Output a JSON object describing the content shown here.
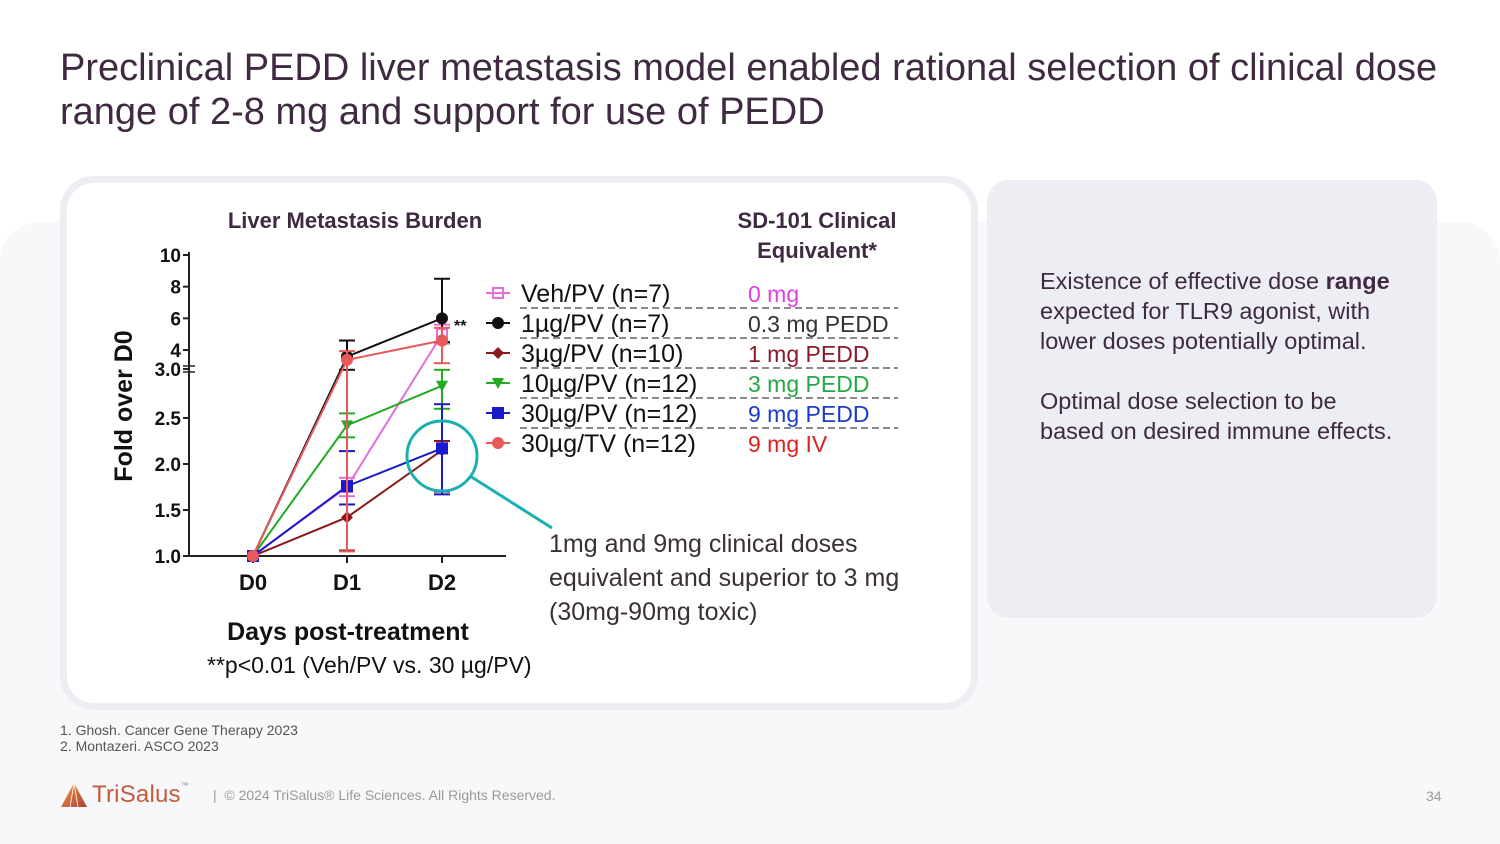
{
  "slide": {
    "title": "Preclinical PEDD liver metastasis model enabled rational selection of clinical dose range of 2-8 mg and support for use of PEDD",
    "page_number": "34"
  },
  "side_panel": {
    "para1_prefix": "Existence of effective dose ",
    "para1_bold": "range",
    "para1_suffix": " expected for TLR9 agonist, with",
    "para1_line2": "lower doses potentially optimal.",
    "para2": "Optimal dose selection to be based on desired immune effects."
  },
  "annotation": {
    "line1": "1mg and 9mg clinical doses",
    "line2": "equivalent and superior to 3 mg",
    "line3": "(30mg-90mg toxic)"
  },
  "references": [
    "1.  Ghosh. Cancer Gene Therapy 2023",
    "2.  Montazeri. ASCO 2023"
  ],
  "footer": {
    "logo": "TriSalus",
    "logo_tm": "™",
    "separator": "|",
    "copyright": "© 2024 TriSalus® Life Sciences. All Rights Reserved."
  },
  "chart_data": {
    "type": "line",
    "title": "Liver Metastasis Burden",
    "xlabel": "Days post-treatment",
    "ylabel": "Fold over D0",
    "footnote": "**p<0.01 (Veh/PV vs. 30 µg/PV)",
    "significance_marker": "**",
    "categories": [
      "D0",
      "D1",
      "D2"
    ],
    "y_axis": {
      "scale": "broken",
      "lower_segment": [
        1.0,
        3.0
      ],
      "upper_segment": [
        3.0,
        10
      ],
      "ticks": [
        "1.0",
        "1.5",
        "2.0",
        "2.5",
        "3.0",
        "4",
        "6",
        "8",
        "10"
      ],
      "tick_values": [
        1.0,
        1.5,
        2.0,
        2.5,
        3.0,
        4,
        6,
        8,
        10
      ]
    },
    "equivalent_header": "SD-101 Clinical Equivalent*",
    "series": [
      {
        "name": "Veh/PV (n=7)",
        "equivalent": "0 mg",
        "color": "#e46fd8",
        "equiv_color": "#e040e0",
        "marker": "square-open",
        "values": [
          1.0,
          1.75,
          5.0
        ],
        "err_upper": [
          0,
          0.1,
          0.6
        ],
        "err_lower": [
          0,
          0.1,
          0.6
        ]
      },
      {
        "name": "1µg/PV  (n=7)",
        "equivalent": "0.3 mg PEDD",
        "color": "#111111",
        "equiv_color": "#333333",
        "marker": "circle",
        "values": [
          1.0,
          3.7,
          6.0
        ],
        "err_upper": [
          0,
          0.9,
          2.5
        ],
        "err_lower": [
          0,
          0.6,
          1.5
        ]
      },
      {
        "name": "3µg/PV  (n=10)",
        "equivalent": "1 mg PEDD",
        "color": "#8b1a1a",
        "equiv_color": "#8b1a2a",
        "marker": "diamond",
        "values": [
          1.0,
          1.42,
          2.15
        ],
        "err_upper": [
          0,
          0.14,
          0.1
        ],
        "err_lower": [
          0,
          0.36,
          0.45
        ]
      },
      {
        "name": "10µg/PV (n=12)",
        "equivalent": "3 mg PEDD",
        "color": "#22aa22",
        "equiv_color": "#22aa44",
        "marker": "triangle-down",
        "values": [
          1.0,
          2.42,
          2.85
        ],
        "err_upper": [
          0,
          0.13,
          0.25
        ],
        "err_lower": [
          0,
          0.13,
          0.25
        ]
      },
      {
        "name": "30µg/PV (n=12)",
        "equivalent": "9 mg PEDD",
        "color": "#1a1acc",
        "equiv_color": "#1a3ccc",
        "marker": "square",
        "values": [
          1.0,
          1.76,
          2.17
        ],
        "err_upper": [
          0,
          0.38,
          0.48
        ],
        "err_lower": [
          0,
          0.2,
          0.5
        ]
      },
      {
        "name": "30µg/TV (n=12)",
        "equivalent": "9 mg IV",
        "color": "#e85a5a",
        "equiv_color": "#dd2222",
        "marker": "circle",
        "values": [
          1.0,
          3.55,
          4.6
        ],
        "err_upper": [
          0,
          0.4,
          0.8
        ],
        "err_lower": [
          0,
          2.5,
          1.2
        ]
      }
    ]
  }
}
